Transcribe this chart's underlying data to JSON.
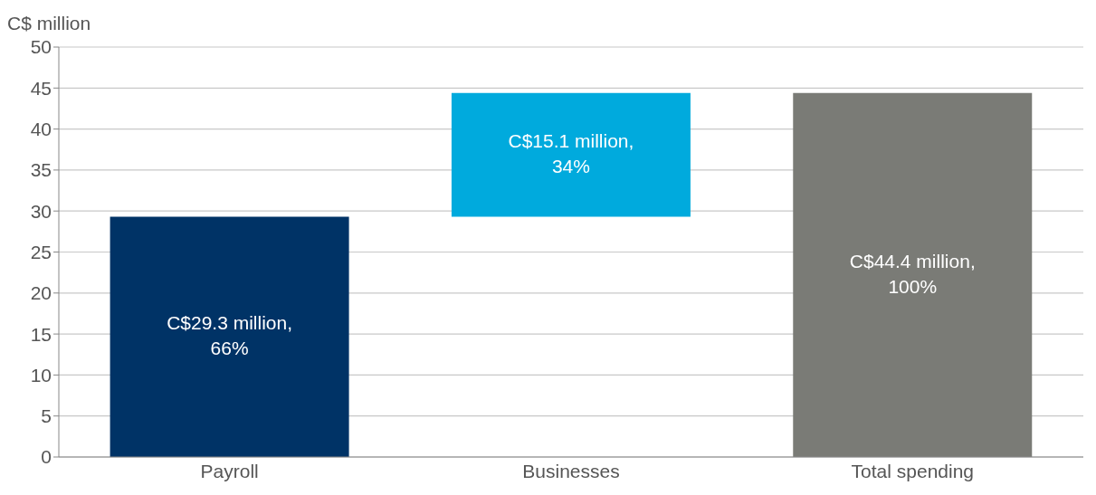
{
  "chart_data": {
    "type": "bar",
    "ylabel": "C$ million",
    "categories": [
      "Payroll",
      "Businesses",
      "Total spending"
    ],
    "values": [
      29.3,
      15.1,
      44.4
    ],
    "base": [
      0,
      29.3,
      0
    ],
    "colors": [
      "#003366",
      "#00aadd",
      "#7a7b76"
    ],
    "annotations": [
      "C$29.3 million, 66%",
      "C$15.1 million, 34%",
      "C$44.4 million, 100%"
    ],
    "ylim": [
      0,
      50
    ],
    "yticks": [
      0,
      5,
      10,
      15,
      20,
      25,
      30,
      35,
      40,
      45,
      50
    ],
    "grid": "y"
  }
}
